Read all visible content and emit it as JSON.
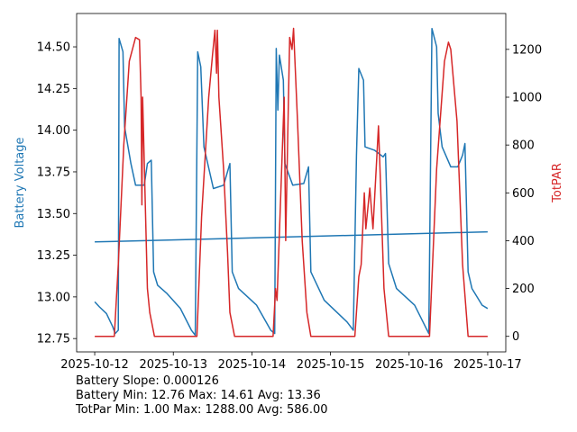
{
  "chart_data": {
    "type": "line",
    "x_tick_labels": [
      "2025-10-12",
      "2025-10-13",
      "2025-10-14",
      "2025-10-15",
      "2025-10-16",
      "2025-10-17"
    ],
    "x_unit": "days since 2025-10-12",
    "xlim": [
      -0.23,
      5.23
    ],
    "left_axis": {
      "label": "Battery Voltage",
      "color": "#1f77b4",
      "ylim": [
        12.67,
        14.7
      ],
      "ticks": [
        "12.75",
        "13.00",
        "13.25",
        "13.50",
        "13.75",
        "14.00",
        "14.25",
        "14.50"
      ],
      "tick_values": [
        12.75,
        13.0,
        13.25,
        13.5,
        13.75,
        14.0,
        14.25,
        14.5
      ]
    },
    "right_axis": {
      "label": "TotPAR",
      "color": "#d62728",
      "ylim": [
        -65,
        1350
      ],
      "ticks": [
        "0",
        "200",
        "400",
        "600",
        "800",
        "1000",
        "1200"
      ],
      "tick_values": [
        0,
        200,
        400,
        600,
        800,
        1000,
        1200
      ]
    },
    "series": [
      {
        "name": "Battery Voltage",
        "axis": "left",
        "color": "#1f77b4",
        "points": [
          [
            0,
            12.97
          ],
          [
            0.06,
            12.94
          ],
          [
            0.15,
            12.9
          ],
          [
            0.23,
            12.82
          ],
          [
            0.26,
            12.78
          ],
          [
            0.3,
            12.8
          ],
          [
            0.31,
            14.55
          ],
          [
            0.36,
            14.47
          ],
          [
            0.38,
            14.02
          ],
          [
            0.46,
            13.8
          ],
          [
            0.52,
            13.67
          ],
          [
            0.63,
            13.67
          ],
          [
            0.67,
            13.8
          ],
          [
            0.72,
            13.82
          ],
          [
            0.75,
            13.15
          ],
          [
            0.8,
            13.07
          ],
          [
            0.92,
            13.02
          ],
          [
            1.09,
            12.93
          ],
          [
            1.23,
            12.8
          ],
          [
            1.28,
            12.77
          ],
          [
            1.31,
            14.47
          ],
          [
            1.35,
            14.38
          ],
          [
            1.39,
            13.9
          ],
          [
            1.51,
            13.65
          ],
          [
            1.64,
            13.67
          ],
          [
            1.72,
            13.8
          ],
          [
            1.75,
            13.15
          ],
          [
            1.83,
            13.05
          ],
          [
            2.06,
            12.95
          ],
          [
            2.24,
            12.8
          ],
          [
            2.29,
            12.78
          ],
          [
            2.31,
            14.49
          ],
          [
            2.33,
            14.12
          ],
          [
            2.35,
            14.45
          ],
          [
            2.4,
            14.3
          ],
          [
            2.42,
            13.8
          ],
          [
            2.52,
            13.67
          ],
          [
            2.66,
            13.68
          ],
          [
            2.72,
            13.78
          ],
          [
            2.75,
            13.15
          ],
          [
            2.92,
            12.98
          ],
          [
            3.21,
            12.85
          ],
          [
            3.29,
            12.8
          ],
          [
            3.33,
            13.85
          ],
          [
            3.36,
            14.37
          ],
          [
            3.42,
            14.3
          ],
          [
            3.44,
            13.9
          ],
          [
            3.56,
            13.88
          ],
          [
            3.67,
            13.84
          ],
          [
            3.7,
            13.86
          ],
          [
            3.74,
            13.2
          ],
          [
            3.84,
            13.05
          ],
          [
            4.07,
            12.95
          ],
          [
            4.25,
            12.78
          ],
          [
            4.29,
            14.61
          ],
          [
            4.35,
            14.5
          ],
          [
            4.37,
            14.1
          ],
          [
            4.42,
            13.9
          ],
          [
            4.53,
            13.78
          ],
          [
            4.62,
            13.78
          ],
          [
            4.68,
            13.85
          ],
          [
            4.71,
            13.92
          ],
          [
            4.75,
            13.15
          ],
          [
            4.8,
            13.05
          ],
          [
            4.93,
            12.95
          ],
          [
            5.0,
            12.93
          ]
        ]
      },
      {
        "name": "Battery Trend",
        "axis": "left",
        "color": "#1f77b4",
        "points": [
          [
            0,
            13.33
          ],
          [
            5,
            13.39
          ]
        ]
      },
      {
        "name": "TotPAR",
        "axis": "right",
        "color": "#d62728",
        "points": [
          [
            0,
            0
          ],
          [
            0.25,
            0
          ],
          [
            0.3,
            300
          ],
          [
            0.37,
            800
          ],
          [
            0.44,
            1150
          ],
          [
            0.52,
            1250
          ],
          [
            0.57,
            1240
          ],
          [
            0.59,
            1000
          ],
          [
            0.6,
            550
          ],
          [
            0.61,
            1000
          ],
          [
            0.67,
            200
          ],
          [
            0.7,
            100
          ],
          [
            0.76,
            0
          ],
          [
            1.3,
            0
          ],
          [
            1.36,
            500
          ],
          [
            1.45,
            1000
          ],
          [
            1.5,
            1180
          ],
          [
            1.53,
            1280
          ],
          [
            1.55,
            1100
          ],
          [
            1.56,
            1280
          ],
          [
            1.58,
            1000
          ],
          [
            1.64,
            700
          ],
          [
            1.69,
            350
          ],
          [
            1.72,
            100
          ],
          [
            1.78,
            0
          ],
          [
            2.27,
            0
          ],
          [
            2.3,
            200
          ],
          [
            2.32,
            150
          ],
          [
            2.41,
            1000
          ],
          [
            2.43,
            400
          ],
          [
            2.48,
            1250
          ],
          [
            2.51,
            1200
          ],
          [
            2.53,
            1288
          ],
          [
            2.58,
            900
          ],
          [
            2.64,
            400
          ],
          [
            2.7,
            100
          ],
          [
            2.75,
            0
          ],
          [
            3.31,
            0
          ],
          [
            3.36,
            250
          ],
          [
            3.39,
            300
          ],
          [
            3.43,
            600
          ],
          [
            3.45,
            450
          ],
          [
            3.5,
            620
          ],
          [
            3.54,
            450
          ],
          [
            3.61,
            880
          ],
          [
            3.63,
            700
          ],
          [
            3.68,
            200
          ],
          [
            3.74,
            0
          ],
          [
            4.26,
            0
          ],
          [
            4.35,
            700
          ],
          [
            4.45,
            1150
          ],
          [
            4.5,
            1230
          ],
          [
            4.53,
            1200
          ],
          [
            4.61,
            900
          ],
          [
            4.68,
            300
          ],
          [
            4.75,
            0
          ],
          [
            5.0,
            0
          ]
        ]
      }
    ],
    "annotations": {
      "slope": "Battery Slope: 0.000126",
      "battery_stats": "Battery Min: 12.76 Max: 14.61 Avg: 13.36",
      "par_stats": "TotPar Min: 1.00 Max: 1288.00 Avg: 586.00"
    }
  }
}
